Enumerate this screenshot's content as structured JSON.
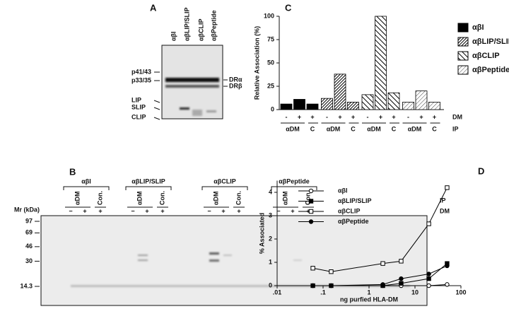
{
  "panel_a": {
    "label": "A",
    "lanes": [
      "αβI",
      "αβLIP/SLIP",
      "αβCLIP",
      "αβPeptide"
    ],
    "left_markers": [
      "p41/43",
      "p33/35",
      "LIP",
      "SLIP",
      "CLIP"
    ],
    "right_markers": [
      "DRα",
      "DRβ"
    ]
  },
  "panel_b": {
    "label": "B",
    "groups": [
      "αβI",
      "αβLIP/SLIP",
      "αβCLIP",
      "αβPeptide"
    ],
    "ip_labels": [
      "αDM",
      "Con."
    ],
    "ip_title": "IP",
    "dm_title": "DM",
    "dm_signs": [
      "−",
      "+",
      "+"
    ],
    "mw_title": "Mr (kDa)",
    "mw_markers": [
      97,
      69,
      46,
      30,
      14.3
    ]
  },
  "chart_data": [
    {
      "type": "bar",
      "panel": "C",
      "ylabel": "Relative Association (%)",
      "ylim": [
        0,
        100
      ],
      "yticks": [
        0,
        25,
        50,
        75,
        100
      ],
      "dm_title": "DM",
      "ip_title": "IP",
      "dm_signs": [
        "-",
        "+",
        "+"
      ],
      "ip_labels": [
        "αDM",
        "C"
      ],
      "series": [
        {
          "name": "αβI",
          "fill": "solid",
          "values": [
            6,
            11,
            6
          ]
        },
        {
          "name": "αβLIP/SLIP",
          "fill": "hatch-dense",
          "values": [
            12,
            38,
            8
          ]
        },
        {
          "name": "αβCLIP",
          "fill": "hatch-back",
          "values": [
            16,
            100,
            18
          ]
        },
        {
          "name": "αβPeptide",
          "fill": "hatch-light",
          "values": [
            8,
            20,
            8
          ]
        }
      ]
    },
    {
      "type": "line",
      "panel": "D",
      "ylabel": "% Associated",
      "xlabel": "ng purfied HLA-DM",
      "xscale": "log",
      "xlim": [
        0.01,
        100
      ],
      "xticks": [
        {
          "value": 0.01,
          "label": ".01"
        },
        {
          "value": 0.1,
          "label": ".1"
        },
        1,
        10,
        100
      ],
      "ylim": [
        0,
        4.5
      ],
      "yticks": [
        0,
        1,
        2,
        3,
        4
      ],
      "x": [
        0.06,
        0.15,
        2,
        5,
        20,
        50
      ],
      "series": [
        {
          "name": "αβI",
          "marker": "circle",
          "filled": false,
          "values": [
            0,
            0,
            0,
            0,
            0,
            0.05
          ]
        },
        {
          "name": "αβLIP/SLIP",
          "marker": "square",
          "filled": true,
          "values": [
            0,
            0,
            0,
            0.1,
            0.3,
            0.95
          ]
        },
        {
          "name": "αβCLIP",
          "marker": "square",
          "filled": false,
          "values": [
            0.75,
            0.6,
            0.95,
            1.05,
            2.65,
            4.2
          ]
        },
        {
          "name": "αβPeptide",
          "marker": "circle",
          "filled": true,
          "values": [
            0,
            0,
            0.05,
            0.3,
            0.5,
            0.85
          ]
        }
      ]
    }
  ]
}
